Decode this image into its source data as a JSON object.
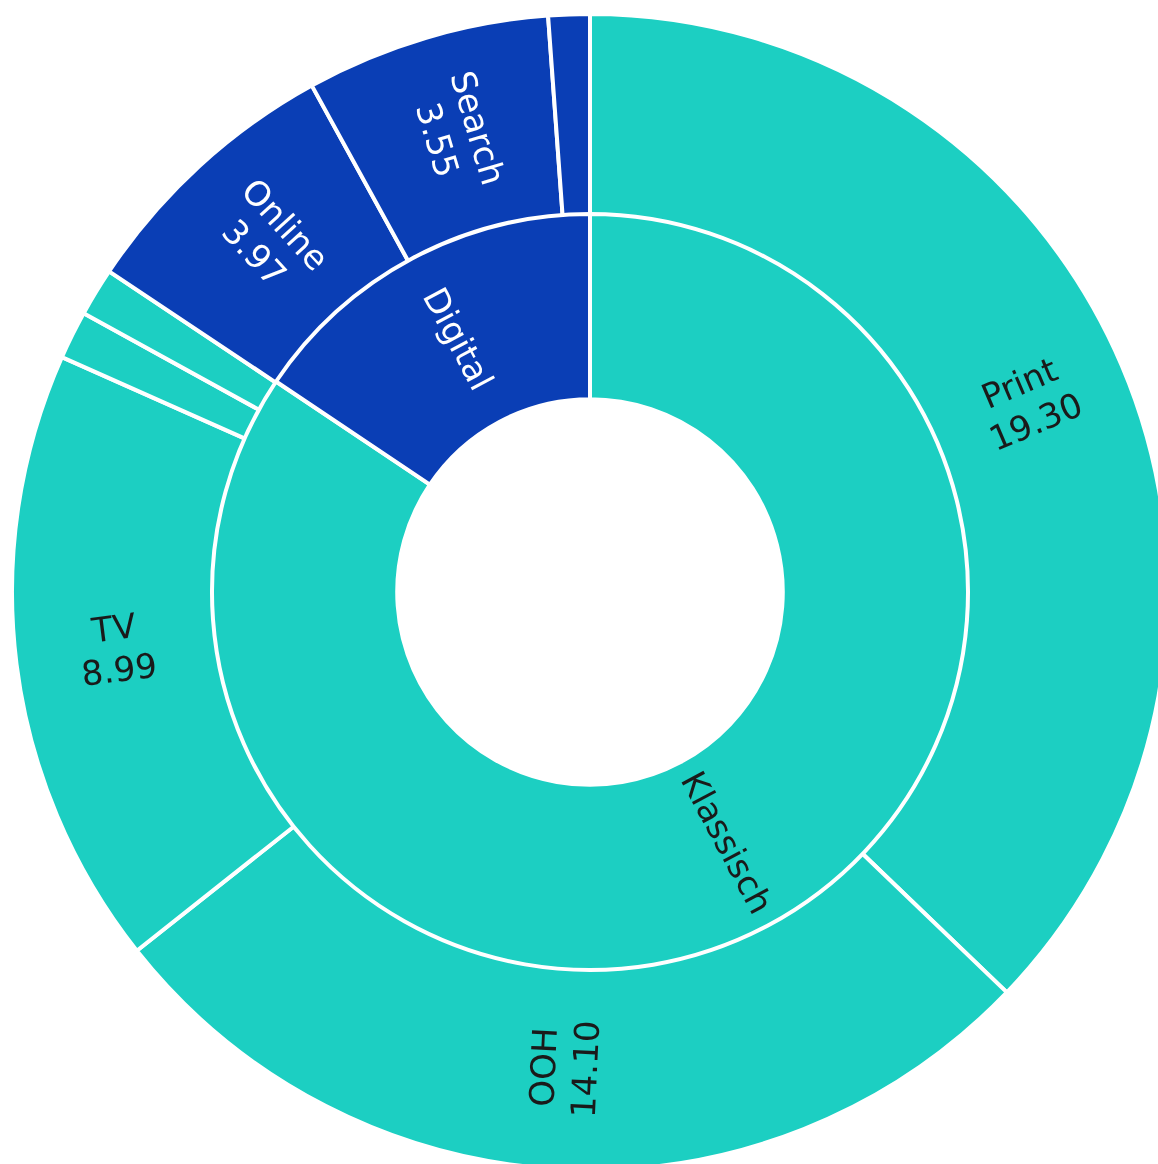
{
  "chart_data": [
    {
      "type": "donut",
      "categories": [
        "Print",
        "OOH",
        "TV",
        null,
        null,
        "Online",
        "Search",
        null
      ],
      "values": [
        19.3,
        14.1,
        8.99,
        0.7,
        0.7,
        3.97,
        3.55,
        0.6
      ],
      "colors": [
        "#1ccfc2",
        "#1ccfc2",
        "#1ccfc2",
        "#1ccfc2",
        "#1ccfc2",
        "#0a3eb5",
        "#0a3eb5",
        "#0a3eb5"
      ],
      "value_labels": [
        "19.30",
        "14.10",
        "8.99",
        null,
        null,
        "3.97",
        "3.55",
        null
      ],
      "legend": false
    },
    {
      "type": "donut",
      "categories": [
        "Klassisch",
        "Digital"
      ],
      "values": [
        84.4,
        15.6
      ],
      "colors": [
        "#1ccfc2",
        "#0a3eb5"
      ],
      "legend": false
    }
  ]
}
